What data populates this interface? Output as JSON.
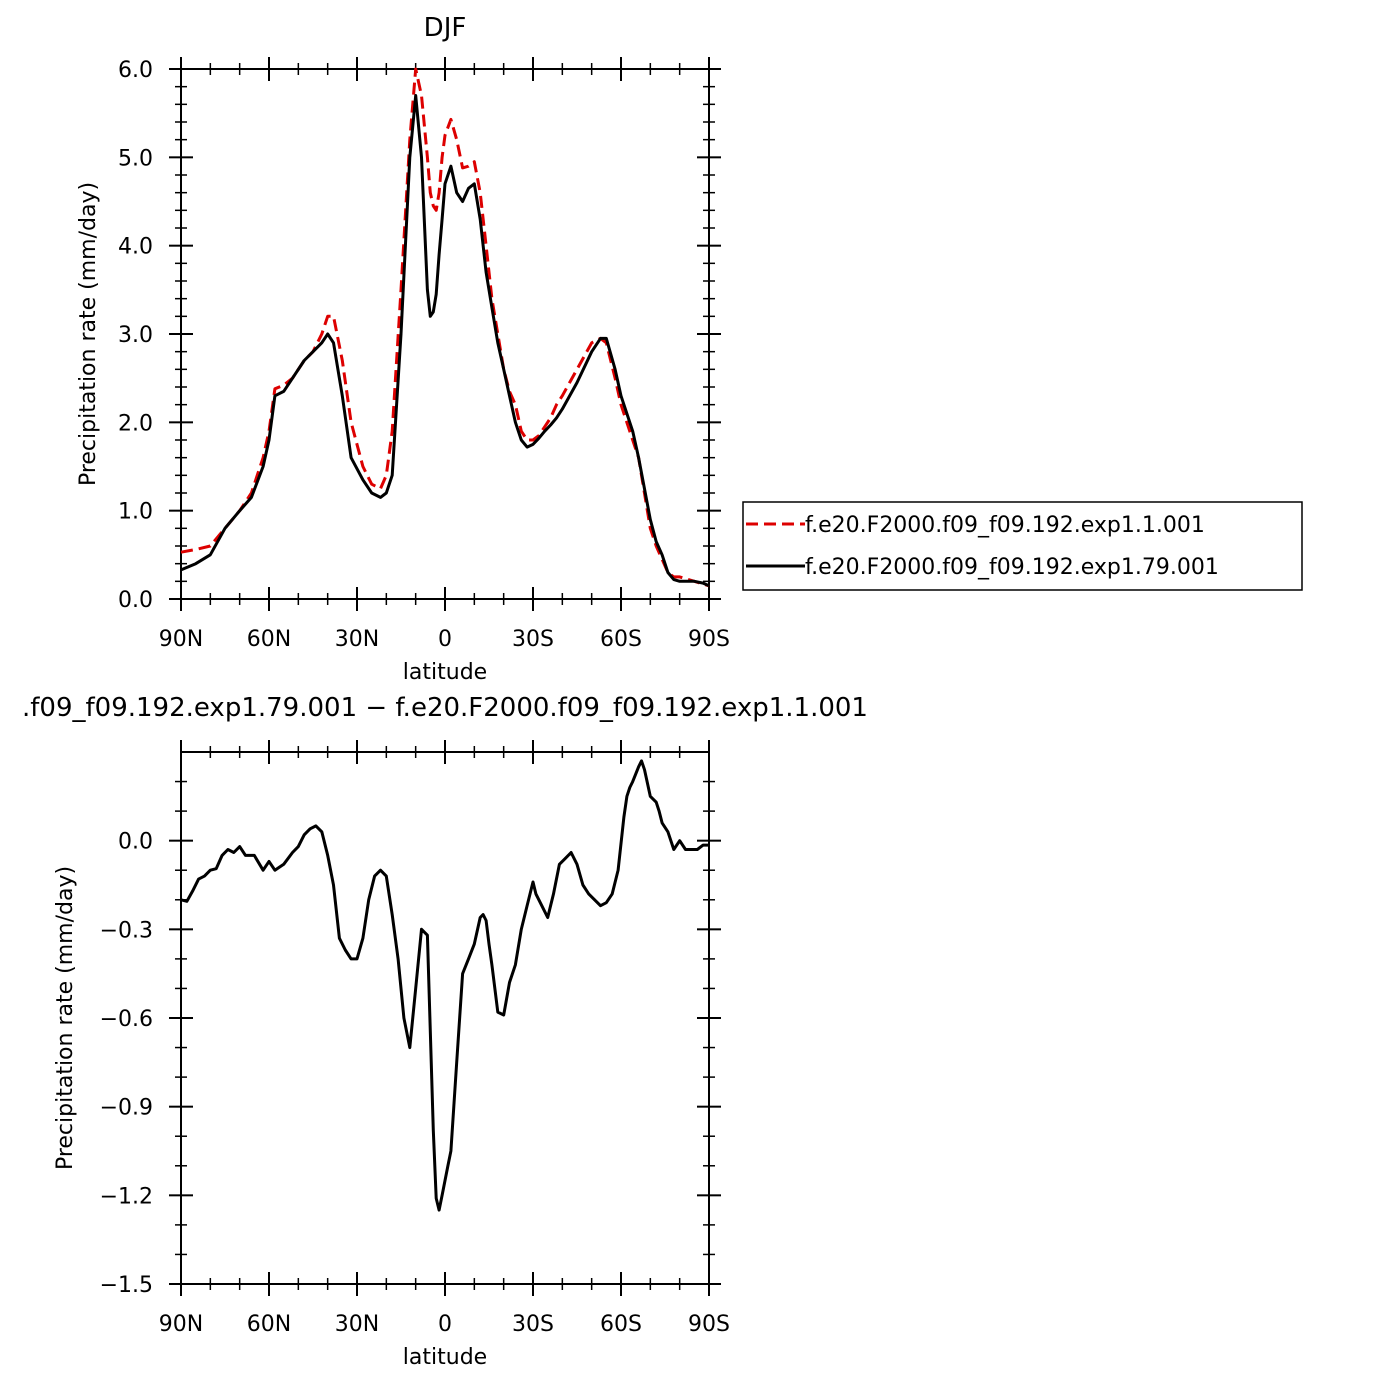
{
  "chart_data": [
    {
      "type": "line",
      "title": "DJF",
      "xlabel": "latitude",
      "ylabel": "Precipitation rate (mm/day)",
      "xlim": [
        90,
        -90
      ],
      "ylim": [
        0,
        6
      ],
      "x_ticks": [
        90,
        60,
        30,
        0,
        -30,
        -60,
        -90
      ],
      "x_tick_labels": [
        "90N",
        "60N",
        "30N",
        "0",
        "30S",
        "60S",
        "90S"
      ],
      "y_ticks": [
        0,
        1,
        2,
        3,
        4,
        5,
        6
      ],
      "y_tick_labels": [
        "0.0",
        "1.0",
        "2.0",
        "3.0",
        "4.0",
        "5.0",
        "6.0"
      ],
      "legend_position": "right",
      "series": [
        {
          "name": "f.e20.F2000.f09_f09.192.exp1.1.001",
          "color": "#dd0000",
          "style": "dashed",
          "x": [
            90,
            85,
            80,
            75,
            70,
            66,
            62,
            60,
            58,
            55,
            52,
            48,
            45,
            42,
            40,
            38,
            35,
            32,
            28,
            25,
            22,
            20,
            18,
            15,
            12,
            10,
            8,
            6,
            5,
            4,
            3,
            2,
            1,
            0,
            -2,
            -4,
            -6,
            -8,
            -10,
            -12,
            -14,
            -16,
            -18,
            -20,
            -22,
            -24,
            -26,
            -28,
            -30,
            -32,
            -34,
            -36,
            -38,
            -40,
            -45,
            -50,
            -53,
            -55,
            -58,
            -60,
            -64,
            -66,
            -70,
            -72,
            -74,
            -76,
            -78,
            -80,
            -83,
            -85,
            -88,
            -90
          ],
          "y": [
            0.53,
            0.56,
            0.6,
            0.8,
            1.0,
            1.2,
            1.6,
            1.9,
            2.38,
            2.42,
            2.5,
            2.7,
            2.8,
            3.0,
            3.2,
            3.2,
            2.7,
            2.0,
            1.5,
            1.3,
            1.25,
            1.4,
            1.9,
            3.5,
            5.2,
            6.0,
            5.7,
            5.0,
            4.6,
            4.45,
            4.4,
            4.6,
            5.0,
            5.25,
            5.43,
            5.2,
            4.88,
            4.9,
            4.95,
            4.6,
            4.0,
            3.4,
            3.0,
            2.6,
            2.35,
            2.2,
            1.9,
            1.8,
            1.8,
            1.85,
            1.95,
            2.05,
            2.2,
            2.3,
            2.6,
            2.9,
            2.95,
            2.9,
            2.5,
            2.2,
            1.8,
            1.6,
            0.8,
            0.6,
            0.45,
            0.3,
            0.25,
            0.25,
            0.22,
            0.2,
            0.17,
            0.15
          ]
        },
        {
          "name": "f.e20.F2000.f09_f09.192.exp1.79.001",
          "color": "#000000",
          "style": "solid",
          "x": [
            90,
            85,
            80,
            75,
            70,
            66,
            62,
            60,
            58,
            55,
            52,
            48,
            45,
            42,
            40,
            38,
            35,
            32,
            28,
            25,
            22,
            20,
            18,
            15,
            12,
            10,
            8,
            6,
            5,
            4,
            3,
            2,
            1,
            0,
            -2,
            -4,
            -6,
            -8,
            -10,
            -12,
            -14,
            -16,
            -18,
            -20,
            -22,
            -24,
            -26,
            -28,
            -30,
            -32,
            -34,
            -36,
            -38,
            -40,
            -45,
            -50,
            -53,
            -55,
            -58,
            -60,
            -64,
            -66,
            -70,
            -72,
            -74,
            -76,
            -78,
            -80,
            -83,
            -85,
            -88,
            -90
          ],
          "y": [
            0.33,
            0.4,
            0.5,
            0.8,
            1.0,
            1.15,
            1.5,
            1.8,
            2.3,
            2.35,
            2.5,
            2.7,
            2.8,
            2.9,
            3.0,
            2.9,
            2.3,
            1.6,
            1.35,
            1.2,
            1.15,
            1.2,
            1.4,
            3.0,
            5.0,
            5.7,
            5.0,
            3.5,
            3.2,
            3.25,
            3.45,
            3.9,
            4.3,
            4.7,
            4.9,
            4.6,
            4.5,
            4.65,
            4.7,
            4.3,
            3.7,
            3.3,
            2.9,
            2.6,
            2.3,
            2.0,
            1.8,
            1.72,
            1.75,
            1.82,
            1.9,
            1.97,
            2.05,
            2.15,
            2.45,
            2.8,
            2.95,
            2.95,
            2.6,
            2.3,
            1.9,
            1.6,
            0.9,
            0.65,
            0.5,
            0.3,
            0.22,
            0.2,
            0.2,
            0.2,
            0.18,
            0.15
          ]
        }
      ]
    },
    {
      "type": "line",
      "title": ".f09_f09.192.exp1.79.001 − f.e20.F2000.f09_f09.192.exp1.1.001",
      "xlabel": "latitude",
      "ylabel": "Precipitation rate (mm/day)",
      "xlim": [
        90,
        -90
      ],
      "ylim": [
        -1.5,
        0.3
      ],
      "x_ticks": [
        90,
        60,
        30,
        0,
        -30,
        -60,
        -90
      ],
      "x_tick_labels": [
        "90N",
        "60N",
        "30N",
        "0",
        "30S",
        "60S",
        "90S"
      ],
      "y_ticks": [
        0.0,
        -0.3,
        -0.6,
        -0.9,
        -1.2,
        -1.5
      ],
      "y_tick_labels": [
        "0.0",
        "−0.3",
        "−0.6",
        "−0.9",
        "−1.2",
        "−1.5"
      ],
      "series": [
        {
          "name": "",
          "color": "#000000",
          "style": "solid",
          "x": [
            90,
            88,
            86,
            84,
            82,
            80,
            78,
            76,
            74,
            72,
            70,
            68,
            65,
            62,
            60,
            58,
            55,
            52,
            50,
            48,
            46,
            44,
            42,
            40,
            38,
            36,
            34,
            32,
            30,
            28,
            26,
            24,
            22,
            20,
            18,
            16,
            14,
            12,
            10,
            8,
            6,
            4,
            3,
            2,
            1,
            0,
            -1,
            -2,
            -3,
            -4,
            -6,
            -8,
            -10,
            -12,
            -13,
            -14,
            -15,
            -16,
            -18,
            -20,
            -22,
            -24,
            -26,
            -28,
            -30,
            -31,
            -33,
            -35,
            -37,
            -39,
            -41,
            -43,
            -45,
            -47,
            -49,
            -51,
            -53,
            -55,
            -57,
            -59,
            -61,
            -62,
            -63,
            -64,
            -66,
            -67,
            -68,
            -70,
            -72,
            -73,
            -74,
            -76,
            -78,
            -80,
            -82,
            -84,
            -86,
            -88,
            -90
          ],
          "y": [
            -0.2,
            -0.205,
            -0.17,
            -0.13,
            -0.12,
            -0.1,
            -0.095,
            -0.05,
            -0.03,
            -0.04,
            -0.02,
            -0.05,
            -0.05,
            -0.1,
            -0.07,
            -0.1,
            -0.08,
            -0.04,
            -0.02,
            0.02,
            0.04,
            0.05,
            0.03,
            -0.05,
            -0.15,
            -0.33,
            -0.37,
            -0.4,
            -0.4,
            -0.33,
            -0.2,
            -0.12,
            -0.1,
            -0.12,
            -0.25,
            -0.4,
            -0.6,
            -0.7,
            -0.5,
            -0.3,
            -0.32,
            -0.98,
            -1.21,
            -1.25,
            -1.2,
            -1.15,
            -1.1,
            -1.05,
            -0.9,
            -0.75,
            -0.45,
            -0.4,
            -0.35,
            -0.26,
            -0.25,
            -0.27,
            -0.35,
            -0.42,
            -0.58,
            -0.59,
            -0.48,
            -0.42,
            -0.3,
            -0.22,
            -0.14,
            -0.18,
            -0.22,
            -0.26,
            -0.18,
            -0.08,
            -0.06,
            -0.04,
            -0.08,
            -0.15,
            -0.18,
            -0.2,
            -0.22,
            -0.21,
            -0.18,
            -0.1,
            0.08,
            0.15,
            0.18,
            0.2,
            0.25,
            0.27,
            0.24,
            0.15,
            0.13,
            0.1,
            0.06,
            0.03,
            -0.03,
            0.0,
            -0.03,
            -0.03,
            -0.03,
            -0.015,
            -0.015
          ]
        }
      ]
    }
  ]
}
